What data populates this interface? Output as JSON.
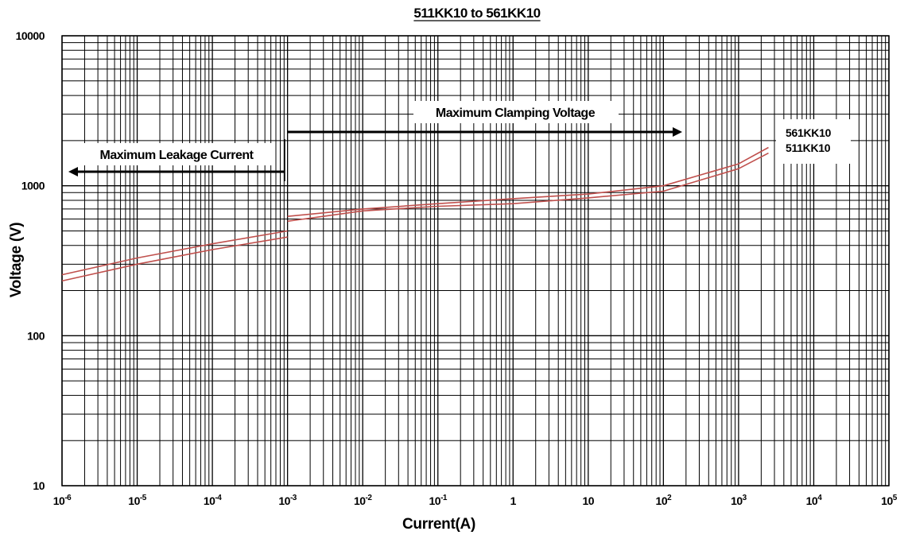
{
  "chart_data": {
    "type": "line",
    "title": "511KK10 to 561KK10",
    "xlabel": "Current(A)",
    "ylabel": "Voltage (V)",
    "xscale": "log",
    "yscale": "log",
    "xlim": [
      1e-06,
      100000.0
    ],
    "ylim": [
      10,
      10000
    ],
    "grid": true,
    "x_tick_labels": [
      {
        "base": "10",
        "exp": "-6"
      },
      {
        "base": "10",
        "exp": "-5"
      },
      {
        "base": "10",
        "exp": "-4"
      },
      {
        "base": "10",
        "exp": "-3"
      },
      {
        "base": "10",
        "exp": "-2"
      },
      {
        "base": "10",
        "exp": "-1"
      },
      {
        "base": "1",
        "exp": ""
      },
      {
        "base": "10",
        "exp": ""
      },
      {
        "base": "10",
        "exp": "2"
      },
      {
        "base": "10",
        "exp": "3"
      },
      {
        "base": "10",
        "exp": "4"
      },
      {
        "base": "10",
        "exp": "5"
      }
    ],
    "y_tick_labels": [
      "10000",
      "1000",
      "100",
      "10"
    ],
    "annotations": [
      {
        "text": "Maximum Leakage Current",
        "arrow": "left"
      },
      {
        "text": "Maximum Clamping Voltage",
        "arrow": "right"
      }
    ],
    "legend_labels": [
      "561KK10",
      "511KK10"
    ],
    "line_color": "#c0504d",
    "series": [
      {
        "name": "561KK10",
        "segments": [
          {
            "x": [
              1e-06,
              1e-05,
              0.0001,
              0.001
            ],
            "y": [
              255,
              330,
              410,
              500
            ]
          },
          {
            "x": [
              0.001,
              0.01,
              0.1,
              1,
              10,
              100,
              1000,
              2500
            ],
            "y": [
              625,
              700,
              760,
              820,
              880,
              1000,
              1400,
              1800
            ]
          }
        ]
      },
      {
        "name": "511KK10",
        "segments": [
          {
            "x": [
              1e-06,
              1e-05,
              0.0001,
              0.001
            ],
            "y": [
              232,
              300,
              375,
              455
            ]
          },
          {
            "x": [
              0.001,
              0.01,
              0.1,
              1,
              10,
              100,
              1000,
              2500
            ],
            "y": [
              580,
              680,
              730,
              760,
              830,
              920,
              1300,
              1650
            ]
          }
        ]
      }
    ]
  }
}
